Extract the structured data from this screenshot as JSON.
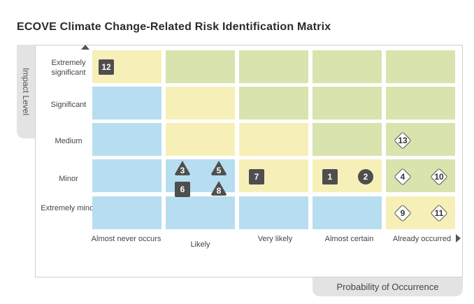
{
  "title": "ECOVE Climate Change-Related Risk Identification Matrix",
  "y_axis_title": "Impact Level",
  "x_axis_title": "Probability of Occurrence",
  "impact_levels": [
    "Extremely significant",
    "Significant",
    "Medium",
    "Minor",
    "Extremely minor"
  ],
  "probability_levels": [
    "Almost never occurs",
    "Likely",
    "Very likely",
    "Almost certain",
    "Already occurred"
  ],
  "colors": {
    "yellow": "#f6f0b8",
    "green": "#d8e3ae",
    "blue": "#b6def0",
    "marker": "#4e4e4e"
  },
  "grid_colors": [
    [
      "yellow",
      "green",
      "green",
      "green",
      "green"
    ],
    [
      "blue",
      "yellow",
      "green",
      "green",
      "green"
    ],
    [
      "blue",
      "yellow",
      "yellow",
      "green",
      "green"
    ],
    [
      "blue",
      "blue",
      "yellow",
      "yellow",
      "green"
    ],
    [
      "blue",
      "blue",
      "blue",
      "blue",
      "yellow"
    ]
  ],
  "risks": [
    {
      "id": "12",
      "shape": "square",
      "impact": "Extremely significant",
      "probability": "Almost never occurs"
    },
    {
      "id": "13",
      "shape": "diamond",
      "impact": "Medium",
      "probability": "Already occurred"
    },
    {
      "id": "3",
      "shape": "triangle",
      "impact": "Minor",
      "probability": "Likely"
    },
    {
      "id": "5",
      "shape": "triangle",
      "impact": "Minor",
      "probability": "Likely"
    },
    {
      "id": "6",
      "shape": "square",
      "impact": "Minor",
      "probability": "Likely"
    },
    {
      "id": "8",
      "shape": "triangle",
      "impact": "Minor",
      "probability": "Likely"
    },
    {
      "id": "7",
      "shape": "square",
      "impact": "Minor",
      "probability": "Very likely"
    },
    {
      "id": "1",
      "shape": "square",
      "impact": "Minor",
      "probability": "Almost certain"
    },
    {
      "id": "2",
      "shape": "circle",
      "impact": "Minor",
      "probability": "Almost certain"
    },
    {
      "id": "4",
      "shape": "diamond",
      "impact": "Minor",
      "probability": "Already occurred"
    },
    {
      "id": "10",
      "shape": "diamond",
      "impact": "Minor",
      "probability": "Already occurred"
    },
    {
      "id": "9",
      "shape": "diamond",
      "impact": "Extremely minor",
      "probability": "Already occurred"
    },
    {
      "id": "11",
      "shape": "diamond",
      "impact": "Extremely minor",
      "probability": "Already occurred"
    }
  ]
}
